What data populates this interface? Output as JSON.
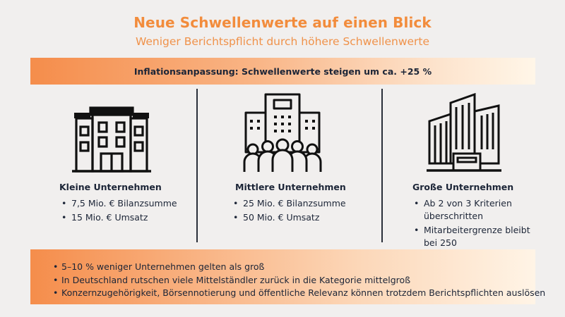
{
  "header": {
    "title": "Neue Schwellenwerte auf einen Blick",
    "subtitle": "Weniger Berichtspflicht durch höhere Schwellenwerte"
  },
  "banner": {
    "text": "Inflationsanpassung: Schwellenwerte steigen um ca. +25 %"
  },
  "columns": [
    {
      "icon": "building-icon",
      "title": "Kleine Unternehmen",
      "bullets": [
        "7,5 Mio. € Bilanzsumme",
        "15 Mio. € Umsatz"
      ]
    },
    {
      "icon": "office-tower-people-icon",
      "title": "Mittlere Unternehmen",
      "bullets": [
        "25 Mio. € Bilanzsumme",
        "50 Mio. € Umsatz"
      ]
    },
    {
      "icon": "skyscrapers-icon",
      "title": "Große Unternehmen",
      "bullets": [
        "Ab 2 von 3 Kriterien überschritten",
        "Mitarbeitergrenze bleibt bei 250"
      ]
    }
  ],
  "notes": [
    "5–10 % weniger Unternehmen gelten als groß",
    "In Deutschland rutschen viele Mittelständler zurück in die Kategorie mittelgroß",
    "Konzernzugehörigkeit, Börsennotierung und öffentliche Relevanz können trotzdem Berichtspflichten auslösen"
  ],
  "colors": {
    "accent": "#f28c3c",
    "text": "#1c2537",
    "background": "#f1efee"
  }
}
